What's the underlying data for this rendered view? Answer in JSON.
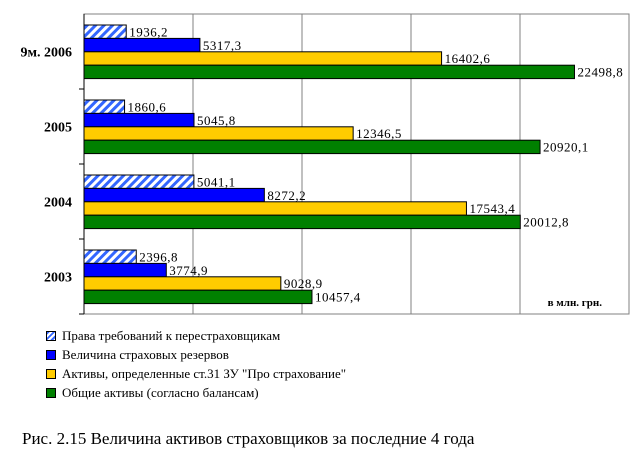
{
  "chart_data": {
    "type": "bar",
    "orientation": "horizontal",
    "categories": [
      "9м. 2006",
      "2005",
      "2004",
      "2003"
    ],
    "series": [
      {
        "name": "Права требований к перестраховщикам",
        "values": [
          1936.2,
          1860.6,
          5041.1,
          2396.8
        ],
        "labels": [
          "1936,2",
          "1860,6",
          "5041,1",
          "2396,8"
        ],
        "color": "#3366ff",
        "pattern": "hatched"
      },
      {
        "name": "Величина страховых резервов",
        "values": [
          5317.3,
          5045.8,
          8272.2,
          3774.9
        ],
        "labels": [
          "5317,3",
          "5045,8",
          "8272,2",
          "3774,9"
        ],
        "color": "#0000ff"
      },
      {
        "name": "Активы, определенные ст.31 ЗУ \"Про страхование\"",
        "values": [
          16402.6,
          12346.5,
          17543.4,
          9028.9
        ],
        "labels": [
          "16402,6",
          "12346,5",
          "17543,4",
          "9028,9"
        ],
        "color": "#ffcc00"
      },
      {
        "name": "Общие активы (согласно балансам)",
        "values": [
          22498.8,
          20920.1,
          20012.8,
          10457.4
        ],
        "labels": [
          "22498,8",
          "20920,1",
          "20012,8",
          "10457,4"
        ],
        "color": "#008000"
      }
    ],
    "xlim": [
      0,
      25000
    ],
    "grid": true,
    "unit_label": "в млн. грн.",
    "legend_placement": "bottom-left",
    "title": "Рис. 2.15 Величина активов страховщиков за последние 4 года"
  }
}
